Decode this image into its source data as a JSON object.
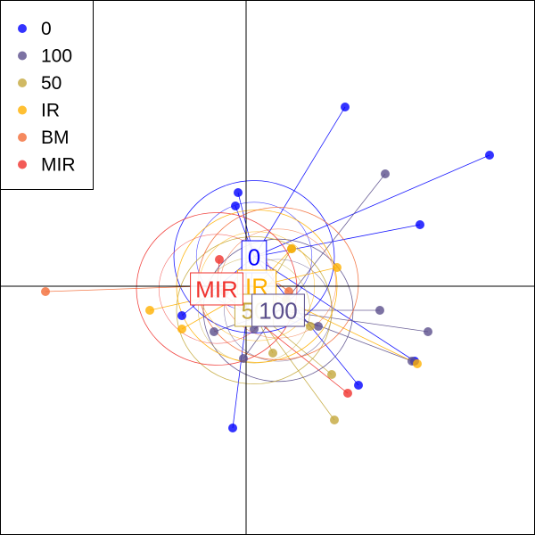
{
  "chart_data": {
    "type": "scatter",
    "title": "",
    "xlabel": "",
    "ylabel": "",
    "xlim": [
      -1.0,
      1.0
    ],
    "ylim": [
      -1.0,
      1.0
    ],
    "grid": false,
    "axes_lines": "cross at origin",
    "legend_position": "top-left",
    "series": [
      {
        "name": "0",
        "color": "#0000ff",
        "centroid": [
          0.03,
          0.11
        ],
        "radius": 0.3,
        "points": [
          [
            0.37,
            0.67
          ],
          [
            0.91,
            0.49
          ],
          [
            0.65,
            0.23
          ],
          [
            -0.03,
            0.35
          ],
          [
            -0.04,
            0.3
          ],
          [
            0.63,
            -0.28
          ],
          [
            0.42,
            -0.37
          ],
          [
            -0.05,
            -0.53
          ],
          [
            -0.24,
            -0.11
          ]
        ]
      },
      {
        "name": "100",
        "color": "#5b4f8c",
        "centroid": [
          0.12,
          -0.09
        ],
        "radius": 0.28,
        "points": [
          [
            0.52,
            0.42
          ],
          [
            0.5,
            -0.09
          ],
          [
            0.68,
            -0.17
          ],
          [
            0.27,
            -0.15
          ],
          [
            -0.01,
            -0.27
          ],
          [
            -0.12,
            -0.17
          ],
          [
            0.62,
            -0.28
          ],
          [
            0.03,
            -0.16
          ]
        ]
      },
      {
        "name": "50",
        "color": "#c4a83c",
        "centroid": [
          0.03,
          -0.09
        ],
        "radius": 0.29,
        "points": [
          [
            0.33,
            -0.5
          ],
          [
            0.32,
            -0.33
          ],
          [
            0.17,
            0.14
          ],
          [
            0.24,
            -0.15
          ],
          [
            0.1,
            -0.25
          ],
          [
            0.15,
            -0.05
          ]
        ]
      },
      {
        "name": "IR",
        "color": "#ffb000",
        "centroid": [
          0.04,
          0.0
        ],
        "radius": 0.3,
        "points": [
          [
            0.34,
            0.07
          ],
          [
            0.64,
            -0.29
          ],
          [
            -0.36,
            -0.09
          ],
          [
            -0.24,
            -0.16
          ],
          [
            0.17,
            0.14
          ]
        ]
      },
      {
        "name": "BM",
        "color": "#f26b36",
        "centroid": [
          0.12,
          0.01
        ],
        "radius": 0.3,
        "points": [
          [
            -0.75,
            -0.02
          ],
          [
            0.16,
            -0.02
          ]
        ]
      },
      {
        "name": "MIR",
        "color": "#f0322d",
        "centroid": [
          -0.11,
          -0.01
        ],
        "radius": 0.3,
        "points": [
          [
            0.38,
            -0.4
          ],
          [
            -0.08,
            -0.02
          ],
          [
            -0.1,
            0.1
          ]
        ]
      }
    ],
    "group_labels": [
      {
        "text": "0",
        "series": "0"
      },
      {
        "text": "IR",
        "series": "IR"
      },
      {
        "text": "50",
        "series": "50"
      },
      {
        "text": "100",
        "series": "100"
      },
      {
        "text": "MIR",
        "series": "MIR"
      }
    ]
  }
}
